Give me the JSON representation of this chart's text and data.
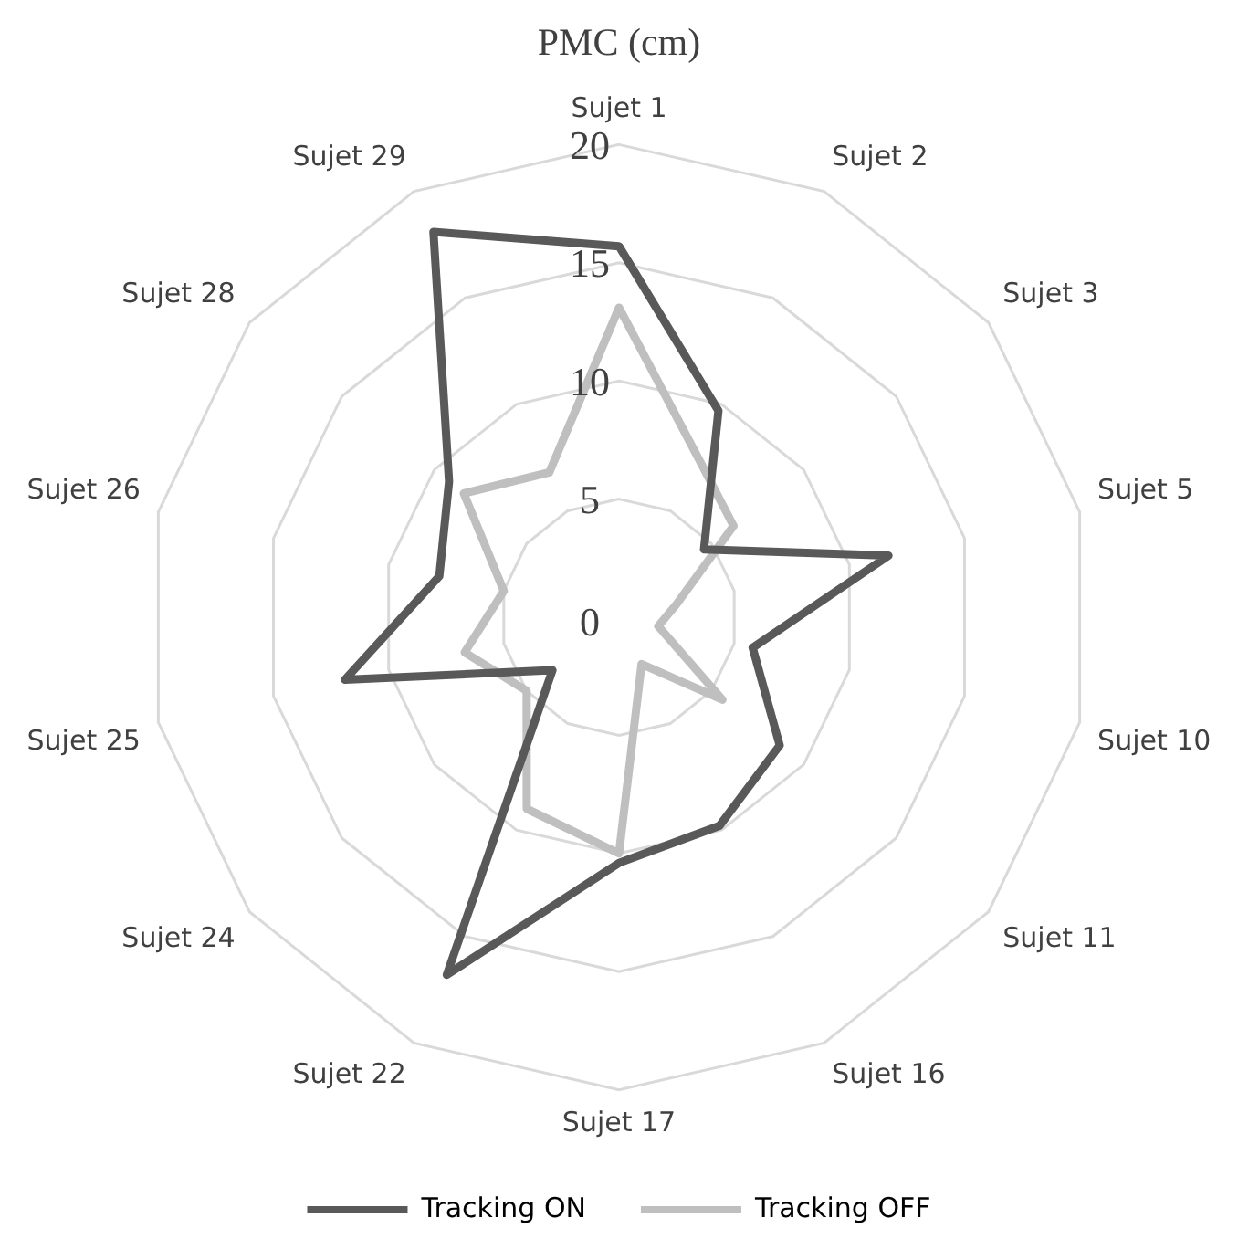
{
  "chart_data": {
    "type": "radar",
    "title": "PMC (cm)",
    "categories": [
      "Sujet 1",
      "Sujet 2",
      "Sujet 3",
      "Sujet 5",
      "Sujet 10",
      "Sujet 11",
      "Sujet 16",
      "Sujet 17",
      "Sujet 22",
      "Sujet 24",
      "Sujet 25",
      "Sujet 26",
      "Sujet 28",
      "Sujet 29"
    ],
    "series": [
      {
        "name": "Tracking ON",
        "color": "#595959",
        "values": [
          15.7,
          9.7,
          4.6,
          11.7,
          5.8,
          8.7,
          9.8,
          10.4,
          16.8,
          3.6,
          11.9,
          7.8,
          9.2,
          18.1
        ]
      },
      {
        "name": "Tracking OFF",
        "color": "#bfbfbf",
        "values": [
          13.1,
          7.6,
          6.2,
          2.5,
          1.7,
          5.6,
          2.2,
          10.0,
          9.0,
          5.0,
          6.7,
          5.0,
          8.4,
          6.8
        ]
      }
    ],
    "ylim": [
      0,
      20
    ],
    "yticks": [
      0,
      5,
      10,
      15,
      20
    ],
    "grid": true,
    "legend": "bottom",
    "marker": "none",
    "line_style": "solid"
  }
}
